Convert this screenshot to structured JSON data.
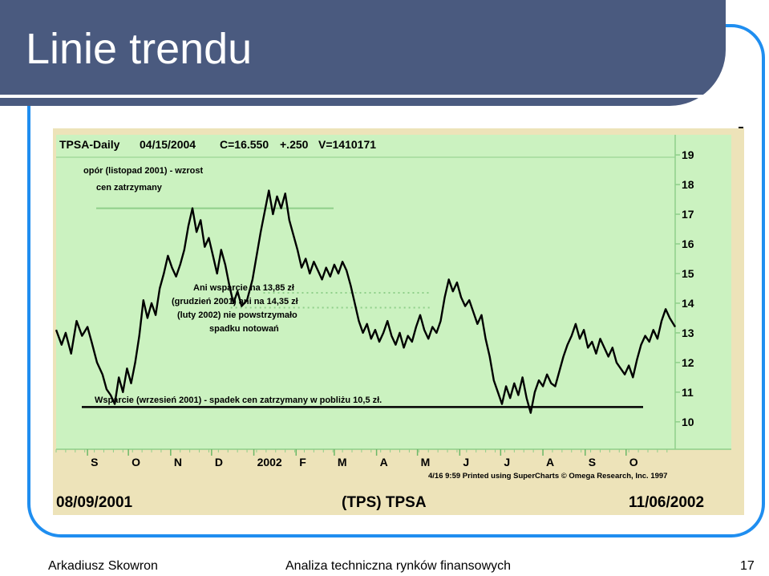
{
  "slide": {
    "title": "Linie trendu",
    "footer_author": "Arkadiusz Skowron",
    "footer_course": "Analiza techniczna rynków finansowych",
    "page_number": "17"
  },
  "colors": {
    "title_bar": "#4a5a7f",
    "frame": "#1f8ef0",
    "plot_bg": "#cbf2c0",
    "panel_bg": "#ede3b9",
    "price_line": "#000000",
    "resistance_line": "#8fcf8a"
  },
  "chart_data": {
    "type": "line",
    "header": {
      "symbol": "TPSA-Daily",
      "date": "04/15/2004",
      "close": "C=16.550",
      "change": "+.250",
      "volume": "V=1410171"
    },
    "x_tick_labels": [
      "S",
      "O",
      "N",
      "D",
      "2002",
      "F",
      "M",
      "A",
      "M",
      "J",
      "J",
      "A",
      "S",
      "O"
    ],
    "y_tick_labels": [
      "19",
      "18",
      "17",
      "16",
      "15",
      "14",
      "13",
      "12",
      "11",
      "10"
    ],
    "y_ticks": [
      19,
      18,
      17,
      16,
      15,
      14,
      13,
      12,
      11,
      10
    ],
    "ylim": [
      9.4,
      19.3
    ],
    "x_range": [
      "2001-08-09",
      "2002-11-06"
    ],
    "series": [
      {
        "points": [
          [
            "2001-08-09",
            13.1
          ],
          [
            "2001-08-13",
            12.6
          ],
          [
            "2001-08-16",
            13.0
          ],
          [
            "2001-08-20",
            12.3
          ],
          [
            "2001-08-24",
            13.4
          ],
          [
            "2001-08-28",
            12.9
          ],
          [
            "2001-09-01",
            13.2
          ],
          [
            "2001-09-04",
            12.7
          ],
          [
            "2001-09-08",
            12.0
          ],
          [
            "2001-09-12",
            11.6
          ],
          [
            "2001-09-15",
            11.1
          ],
          [
            "2001-09-18",
            10.9
          ],
          [
            "2001-09-21",
            10.6
          ],
          [
            "2001-09-24",
            11.5
          ],
          [
            "2001-09-27",
            11.0
          ],
          [
            "2001-09-30",
            11.8
          ],
          [
            "2001-10-03",
            11.3
          ],
          [
            "2001-10-06",
            12.0
          ],
          [
            "2001-10-09",
            12.9
          ],
          [
            "2001-10-12",
            14.1
          ],
          [
            "2001-10-15",
            13.5
          ],
          [
            "2001-10-18",
            14.0
          ],
          [
            "2001-10-21",
            13.6
          ],
          [
            "2001-10-24",
            14.5
          ],
          [
            "2001-10-27",
            15.0
          ],
          [
            "2001-10-30",
            15.6
          ],
          [
            "2001-11-02",
            15.2
          ],
          [
            "2001-11-05",
            14.9
          ],
          [
            "2001-11-08",
            15.3
          ],
          [
            "2001-11-11",
            15.8
          ],
          [
            "2001-11-14",
            16.6
          ],
          [
            "2001-11-17",
            17.2
          ],
          [
            "2001-11-20",
            16.4
          ],
          [
            "2001-11-23",
            16.8
          ],
          [
            "2001-11-26",
            15.9
          ],
          [
            "2001-11-29",
            16.2
          ],
          [
            "2001-12-02",
            15.6
          ],
          [
            "2001-12-05",
            15.0
          ],
          [
            "2001-12-08",
            15.8
          ],
          [
            "2001-12-11",
            15.3
          ],
          [
            "2001-12-14",
            14.6
          ],
          [
            "2001-12-17",
            14.0
          ],
          [
            "2001-12-20",
            14.4
          ],
          [
            "2001-12-23",
            13.9
          ],
          [
            "2001-12-27",
            14.1
          ],
          [
            "2001-12-31",
            14.8
          ],
          [
            "2002-01-03",
            15.6
          ],
          [
            "2002-01-06",
            16.4
          ],
          [
            "2002-01-09",
            17.1
          ],
          [
            "2002-01-12",
            17.8
          ],
          [
            "2002-01-15",
            17.0
          ],
          [
            "2002-01-18",
            17.6
          ],
          [
            "2002-01-21",
            17.2
          ],
          [
            "2002-01-24",
            17.7
          ],
          [
            "2002-01-27",
            16.8
          ],
          [
            "2002-01-30",
            16.3
          ],
          [
            "2002-02-02",
            15.8
          ],
          [
            "2002-02-05",
            15.2
          ],
          [
            "2002-02-08",
            15.5
          ],
          [
            "2002-02-11",
            15.0
          ],
          [
            "2002-02-14",
            15.4
          ],
          [
            "2002-02-17",
            15.1
          ],
          [
            "2002-02-20",
            14.8
          ],
          [
            "2002-02-23",
            15.2
          ],
          [
            "2002-02-26",
            14.9
          ],
          [
            "2002-03-01",
            15.3
          ],
          [
            "2002-03-04",
            15.0
          ],
          [
            "2002-03-07",
            15.4
          ],
          [
            "2002-03-10",
            15.1
          ],
          [
            "2002-03-13",
            14.6
          ],
          [
            "2002-03-16",
            14.0
          ],
          [
            "2002-03-19",
            13.4
          ],
          [
            "2002-03-22",
            13.0
          ],
          [
            "2002-03-25",
            13.3
          ],
          [
            "2002-03-28",
            12.8
          ],
          [
            "2002-03-31",
            13.1
          ],
          [
            "2002-04-03",
            12.7
          ],
          [
            "2002-04-06",
            13.0
          ],
          [
            "2002-04-09",
            13.4
          ],
          [
            "2002-04-12",
            12.9
          ],
          [
            "2002-04-15",
            12.6
          ],
          [
            "2002-04-18",
            13.0
          ],
          [
            "2002-04-21",
            12.5
          ],
          [
            "2002-04-24",
            12.9
          ],
          [
            "2002-04-27",
            12.7
          ],
          [
            "2002-04-30",
            13.2
          ],
          [
            "2002-05-03",
            13.6
          ],
          [
            "2002-05-06",
            13.1
          ],
          [
            "2002-05-09",
            12.8
          ],
          [
            "2002-05-12",
            13.2
          ],
          [
            "2002-05-15",
            13.0
          ],
          [
            "2002-05-18",
            13.4
          ],
          [
            "2002-05-21",
            14.2
          ],
          [
            "2002-05-24",
            14.8
          ],
          [
            "2002-05-27",
            14.4
          ],
          [
            "2002-05-30",
            14.7
          ],
          [
            "2002-06-02",
            14.2
          ],
          [
            "2002-06-05",
            13.9
          ],
          [
            "2002-06-08",
            14.1
          ],
          [
            "2002-06-11",
            13.7
          ],
          [
            "2002-06-14",
            13.3
          ],
          [
            "2002-06-17",
            13.6
          ],
          [
            "2002-06-20",
            12.8
          ],
          [
            "2002-06-23",
            12.2
          ],
          [
            "2002-06-26",
            11.4
          ],
          [
            "2002-06-29",
            11.0
          ],
          [
            "2002-07-02",
            10.6
          ],
          [
            "2002-07-05",
            11.2
          ],
          [
            "2002-07-08",
            10.8
          ],
          [
            "2002-07-11",
            11.3
          ],
          [
            "2002-07-14",
            10.9
          ],
          [
            "2002-07-17",
            11.5
          ],
          [
            "2002-07-20",
            10.8
          ],
          [
            "2002-07-23",
            10.3
          ],
          [
            "2002-07-26",
            11.0
          ],
          [
            "2002-07-29",
            11.4
          ],
          [
            "2002-08-01",
            11.2
          ],
          [
            "2002-08-04",
            11.6
          ],
          [
            "2002-08-07",
            11.3
          ],
          [
            "2002-08-10",
            11.2
          ],
          [
            "2002-08-13",
            11.7
          ],
          [
            "2002-08-16",
            12.2
          ],
          [
            "2002-08-19",
            12.6
          ],
          [
            "2002-08-22",
            12.9
          ],
          [
            "2002-08-25",
            13.3
          ],
          [
            "2002-08-28",
            12.8
          ],
          [
            "2002-08-31",
            13.1
          ],
          [
            "2002-09-03",
            12.5
          ],
          [
            "2002-09-06",
            12.7
          ],
          [
            "2002-09-09",
            12.3
          ],
          [
            "2002-09-12",
            12.8
          ],
          [
            "2002-09-15",
            12.5
          ],
          [
            "2002-09-18",
            12.2
          ],
          [
            "2002-09-21",
            12.5
          ],
          [
            "2002-09-24",
            12.0
          ],
          [
            "2002-09-27",
            11.8
          ],
          [
            "2002-09-30",
            11.6
          ],
          [
            "2002-10-03",
            11.9
          ],
          [
            "2002-10-06",
            11.5
          ],
          [
            "2002-10-09",
            12.1
          ],
          [
            "2002-10-12",
            12.6
          ],
          [
            "2002-10-15",
            12.9
          ],
          [
            "2002-10-18",
            12.7
          ],
          [
            "2002-10-21",
            13.1
          ],
          [
            "2002-10-24",
            12.8
          ],
          [
            "2002-10-27",
            13.4
          ],
          [
            "2002-10-30",
            13.8
          ],
          [
            "2002-11-02",
            13.5
          ],
          [
            "2002-11-06",
            13.2
          ]
        ]
      }
    ],
    "resistance": {
      "label_line1": "opór (listopad 2001) - wzrost",
      "label_line2": "cen zatrzymany",
      "value": 17.2,
      "from": "2001-11-14",
      "to": "2002-03-20"
    },
    "broken_support": {
      "label_lines": [
        "Ani wsparcie na 13,85 zł",
        "(grudzień 2001) ani na 14,35 zł",
        "(luty 2002) nie powstrzymało",
        "spadku notowań"
      ],
      "level_1": 13.85,
      "level_2": 14.35,
      "from": "2001-12-15",
      "to": "2002-05-10"
    },
    "support": {
      "label": "Wsparcie (wrzesień 2001) - spadek cen zatrzymany w pobliżu 10,5 zł.",
      "value": 10.5,
      "from": "2001-08-24",
      "to": "2002-10-20"
    },
    "printed_note": "4/16  9:59 Printed using SuperCharts © Omega Research, Inc. 1997",
    "footer_start_date": "08/09/2001",
    "footer_title": "(TPS) TPSA",
    "footer_end_date": "11/06/2002"
  }
}
